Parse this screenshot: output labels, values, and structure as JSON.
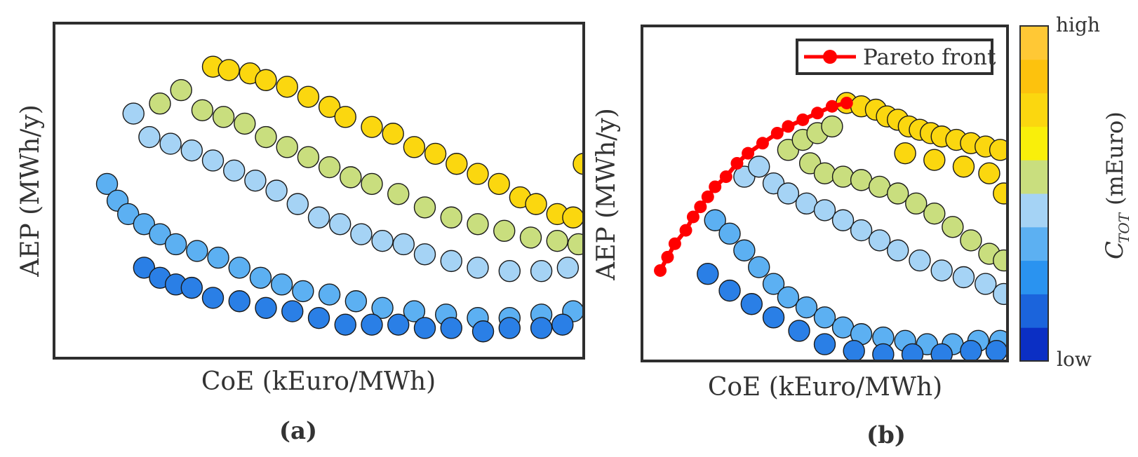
{
  "figure": {
    "panels": [
      {
        "panel_label": "(a)",
        "xlabel": "CoE (kEuro/MWh)",
        "ylabel": "AEP (MWh/y)"
      },
      {
        "panel_label": "(b)",
        "xlabel": "CoE (kEuro/MWh)",
        "ylabel": "AEP (MWh/y)",
        "legend": {
          "label": "Pareto front",
          "color": "#ff0000",
          "placement": "top-right"
        }
      }
    ],
    "colorbar": {
      "label_main": "C",
      "label_sub": "TOT",
      "label_unit": "(mEuro)",
      "tick_high": "high",
      "tick_low": "low",
      "colors_low_to_high": [
        "#0b2fc4",
        "#1b64dc",
        "#2a93f0",
        "#5cb0f2",
        "#a5d3f5",
        "#c9de7e",
        "#f9ef0a",
        "#fbd70f",
        "#fdc20d",
        "#ffc835"
      ]
    }
  },
  "chart_data": [
    {
      "type": "scatter",
      "xlabel": "CoE (kEuro/MWh)",
      "ylabel": "AEP (MWh/y)",
      "xlim": [
        0,
        1
      ],
      "ylim": [
        0,
        1
      ],
      "grid": false,
      "color_variable": "C_TOT (mEuro)",
      "series": [
        {
          "class": "high",
          "color": "#fbd70f",
          "points": [
            [
              0.3,
              0.87
            ],
            [
              0.33,
              0.86
            ],
            [
              0.37,
              0.85
            ],
            [
              0.4,
              0.83
            ],
            [
              0.44,
              0.81
            ],
            [
              0.48,
              0.78
            ],
            [
              0.52,
              0.75
            ],
            [
              0.55,
              0.72
            ],
            [
              0.6,
              0.69
            ],
            [
              0.64,
              0.67
            ],
            [
              0.68,
              0.63
            ],
            [
              0.72,
              0.61
            ],
            [
              0.76,
              0.58
            ],
            [
              0.8,
              0.55
            ],
            [
              0.84,
              0.52
            ],
            [
              0.88,
              0.48
            ],
            [
              0.91,
              0.46
            ],
            [
              0.95,
              0.43
            ],
            [
              0.98,
              0.42
            ],
            [
              1.0,
              0.58
            ]
          ]
        },
        {
          "class": "mid",
          "color": "#c9de7e",
          "points": [
            [
              0.2,
              0.76
            ],
            [
              0.24,
              0.8
            ],
            [
              0.28,
              0.74
            ],
            [
              0.32,
              0.72
            ],
            [
              0.36,
              0.7
            ],
            [
              0.4,
              0.66
            ],
            [
              0.44,
              0.63
            ],
            [
              0.48,
              0.6
            ],
            [
              0.52,
              0.57
            ],
            [
              0.56,
              0.54
            ],
            [
              0.6,
              0.52
            ],
            [
              0.65,
              0.49
            ],
            [
              0.7,
              0.45
            ],
            [
              0.75,
              0.42
            ],
            [
              0.8,
              0.4
            ],
            [
              0.85,
              0.38
            ],
            [
              0.9,
              0.36
            ],
            [
              0.95,
              0.35
            ],
            [
              0.99,
              0.34
            ]
          ]
        },
        {
          "class": "low-mid",
          "color": "#a5d3f5",
          "points": [
            [
              0.15,
              0.73
            ],
            [
              0.18,
              0.66
            ],
            [
              0.22,
              0.64
            ],
            [
              0.26,
              0.62
            ],
            [
              0.3,
              0.59
            ],
            [
              0.34,
              0.56
            ],
            [
              0.38,
              0.53
            ],
            [
              0.42,
              0.5
            ],
            [
              0.46,
              0.46
            ],
            [
              0.5,
              0.42
            ],
            [
              0.54,
              0.4
            ],
            [
              0.58,
              0.37
            ],
            [
              0.62,
              0.35
            ],
            [
              0.66,
              0.34
            ],
            [
              0.7,
              0.31
            ],
            [
              0.75,
              0.29
            ],
            [
              0.8,
              0.27
            ],
            [
              0.86,
              0.26
            ],
            [
              0.92,
              0.26
            ],
            [
              0.97,
              0.27
            ]
          ]
        },
        {
          "class": "low",
          "color": "#5cb0f2",
          "points": [
            [
              0.1,
              0.52
            ],
            [
              0.12,
              0.47
            ],
            [
              0.14,
              0.43
            ],
            [
              0.17,
              0.4
            ],
            [
              0.2,
              0.37
            ],
            [
              0.23,
              0.34
            ],
            [
              0.27,
              0.32
            ],
            [
              0.31,
              0.3
            ],
            [
              0.35,
              0.27
            ],
            [
              0.39,
              0.24
            ],
            [
              0.43,
              0.22
            ],
            [
              0.47,
              0.2
            ],
            [
              0.52,
              0.19
            ],
            [
              0.57,
              0.17
            ],
            [
              0.62,
              0.15
            ],
            [
              0.68,
              0.14
            ],
            [
              0.74,
              0.13
            ],
            [
              0.8,
              0.12
            ],
            [
              0.86,
              0.12
            ],
            [
              0.92,
              0.13
            ],
            [
              0.98,
              0.14
            ]
          ]
        },
        {
          "class": "lowest",
          "color": "#2a7fe6",
          "points": [
            [
              0.17,
              0.27
            ],
            [
              0.2,
              0.24
            ],
            [
              0.23,
              0.22
            ],
            [
              0.26,
              0.21
            ],
            [
              0.3,
              0.18
            ],
            [
              0.35,
              0.17
            ],
            [
              0.4,
              0.15
            ],
            [
              0.45,
              0.14
            ],
            [
              0.5,
              0.12
            ],
            [
              0.55,
              0.1
            ],
            [
              0.6,
              0.1
            ],
            [
              0.65,
              0.1
            ],
            [
              0.7,
              0.09
            ],
            [
              0.75,
              0.09
            ],
            [
              0.81,
              0.08
            ],
            [
              0.86,
              0.09
            ],
            [
              0.92,
              0.09
            ],
            [
              0.96,
              0.1
            ]
          ]
        }
      ]
    },
    {
      "type": "scatter",
      "xlabel": "CoE (kEuro/MWh)",
      "ylabel": "AEP (MWh/y)",
      "xlim": [
        0,
        1
      ],
      "ylim": [
        0,
        1
      ],
      "grid": false,
      "legend": "top-right",
      "color_variable": "C_TOT (mEuro)",
      "series": [
        {
          "class": "high",
          "color": "#fbd70f",
          "points": [
            [
              0.56,
              0.77
            ],
            [
              0.6,
              0.76
            ],
            [
              0.64,
              0.75
            ],
            [
              0.67,
              0.73
            ],
            [
              0.7,
              0.72
            ],
            [
              0.73,
              0.7
            ],
            [
              0.76,
              0.69
            ],
            [
              0.79,
              0.68
            ],
            [
              0.82,
              0.67
            ],
            [
              0.86,
              0.66
            ],
            [
              0.9,
              0.65
            ],
            [
              0.94,
              0.64
            ],
            [
              0.98,
              0.63
            ],
            [
              0.72,
              0.62
            ],
            [
              0.8,
              0.6
            ],
            [
              0.88,
              0.58
            ],
            [
              0.95,
              0.56
            ],
            [
              0.99,
              0.5
            ]
          ]
        },
        {
          "class": "mid",
          "color": "#c9de7e",
          "points": [
            [
              0.4,
              0.63
            ],
            [
              0.44,
              0.66
            ],
            [
              0.48,
              0.68
            ],
            [
              0.52,
              0.7
            ],
            [
              0.46,
              0.59
            ],
            [
              0.5,
              0.56
            ],
            [
              0.55,
              0.55
            ],
            [
              0.6,
              0.54
            ],
            [
              0.65,
              0.52
            ],
            [
              0.7,
              0.5
            ],
            [
              0.75,
              0.47
            ],
            [
              0.8,
              0.44
            ],
            [
              0.85,
              0.4
            ],
            [
              0.9,
              0.36
            ],
            [
              0.95,
              0.32
            ],
            [
              0.99,
              0.3
            ]
          ]
        },
        {
          "class": "low-mid",
          "color": "#a5d3f5",
          "points": [
            [
              0.28,
              0.55
            ],
            [
              0.32,
              0.58
            ],
            [
              0.36,
              0.53
            ],
            [
              0.4,
              0.5
            ],
            [
              0.45,
              0.47
            ],
            [
              0.5,
              0.45
            ],
            [
              0.55,
              0.42
            ],
            [
              0.6,
              0.39
            ],
            [
              0.65,
              0.36
            ],
            [
              0.7,
              0.33
            ],
            [
              0.76,
              0.3
            ],
            [
              0.82,
              0.27
            ],
            [
              0.88,
              0.25
            ],
            [
              0.94,
              0.23
            ],
            [
              0.99,
              0.2
            ]
          ]
        },
        {
          "class": "low",
          "color": "#5cb0f2",
          "points": [
            [
              0.2,
              0.42
            ],
            [
              0.24,
              0.38
            ],
            [
              0.28,
              0.33
            ],
            [
              0.32,
              0.28
            ],
            [
              0.36,
              0.23
            ],
            [
              0.4,
              0.19
            ],
            [
              0.45,
              0.16
            ],
            [
              0.5,
              0.13
            ],
            [
              0.55,
              0.1
            ],
            [
              0.6,
              0.08
            ],
            [
              0.66,
              0.07
            ],
            [
              0.72,
              0.06
            ],
            [
              0.78,
              0.05
            ],
            [
              0.85,
              0.05
            ],
            [
              0.92,
              0.06
            ],
            [
              0.98,
              0.06
            ]
          ]
        },
        {
          "class": "lowest",
          "color": "#2a7fe6",
          "points": [
            [
              0.18,
              0.26
            ],
            [
              0.24,
              0.21
            ],
            [
              0.3,
              0.17
            ],
            [
              0.36,
              0.13
            ],
            [
              0.43,
              0.09
            ],
            [
              0.5,
              0.05
            ],
            [
              0.58,
              0.03
            ],
            [
              0.66,
              0.02
            ],
            [
              0.74,
              0.02
            ],
            [
              0.82,
              0.02
            ],
            [
              0.9,
              0.03
            ],
            [
              0.97,
              0.03
            ]
          ]
        },
        {
          "name": "Pareto front",
          "kind": "line",
          "color": "#ff0000",
          "points": [
            [
              0.05,
              0.27
            ],
            [
              0.07,
              0.31
            ],
            [
              0.09,
              0.35
            ],
            [
              0.12,
              0.39
            ],
            [
              0.14,
              0.43
            ],
            [
              0.16,
              0.46
            ],
            [
              0.18,
              0.49
            ],
            [
              0.2,
              0.52
            ],
            [
              0.23,
              0.55
            ],
            [
              0.26,
              0.59
            ],
            [
              0.29,
              0.62
            ],
            [
              0.33,
              0.65
            ],
            [
              0.37,
              0.68
            ],
            [
              0.4,
              0.7
            ],
            [
              0.44,
              0.72
            ],
            [
              0.48,
              0.74
            ],
            [
              0.52,
              0.76
            ],
            [
              0.56,
              0.77
            ]
          ]
        }
      ]
    }
  ]
}
